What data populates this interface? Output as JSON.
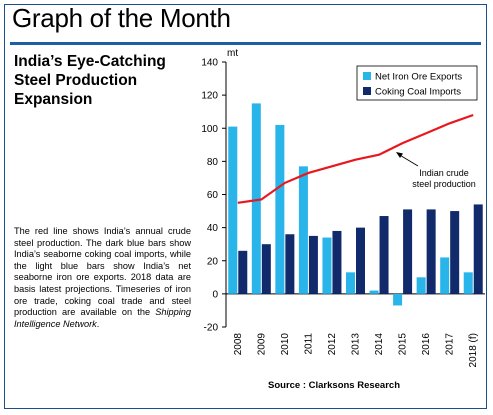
{
  "page": {
    "header_title": "Graph of the Month",
    "headline_lines": [
      "India’s Eye-Catching",
      "Steel Production",
      "Expansion"
    ],
    "body_text_main": "The red line shows India’s annual crude steel production. The dark blue bars show India’s seaborne coking coal imports, while the light blue bars show India’s net seaborne iron ore exports. 2018 data are basis latest projections. Timeseries of iron ore trade, coking coal trade and steel production are available on the ",
    "body_text_italic": "Shipping Intelligence Network",
    "body_text_end": ".",
    "source": "Source : Clarksons Research"
  },
  "colors": {
    "net_iron_ore": "#29b4ea",
    "coking_coal": "#102a6b",
    "steel_line": "#e8181e",
    "brand_rule": "#1a5fa8"
  },
  "chart_data": {
    "type": "bar",
    "unit_label": "mt",
    "categories": [
      "2008",
      "2009",
      "2010",
      "2011",
      "2012",
      "2013",
      "2014",
      "2015",
      "2016",
      "2017",
      "2018 (f)"
    ],
    "ylim": [
      -20,
      140
    ],
    "yticks": [
      -20,
      0,
      20,
      40,
      60,
      80,
      100,
      120,
      140
    ],
    "series": [
      {
        "name": "Net Iron Ore Exports",
        "type": "bar",
        "values": [
          101,
          115,
          102,
          77,
          34,
          13,
          2,
          -7,
          10,
          22,
          13
        ]
      },
      {
        "name": "Coking Coal Imports",
        "type": "bar",
        "values": [
          26,
          30,
          36,
          35,
          38,
          40,
          47,
          51,
          51,
          50,
          54
        ]
      },
      {
        "name": "Indian crude steel production",
        "type": "line",
        "values": [
          55,
          57,
          67,
          73,
          77,
          81,
          84,
          91,
          97,
          103,
          108
        ]
      }
    ],
    "legend": [
      "Net Iron Ore Exports",
      "Coking Coal Imports"
    ],
    "legend_position": "top-right",
    "annotation": [
      "Indian crude",
      "steel production"
    ],
    "grid": false
  }
}
